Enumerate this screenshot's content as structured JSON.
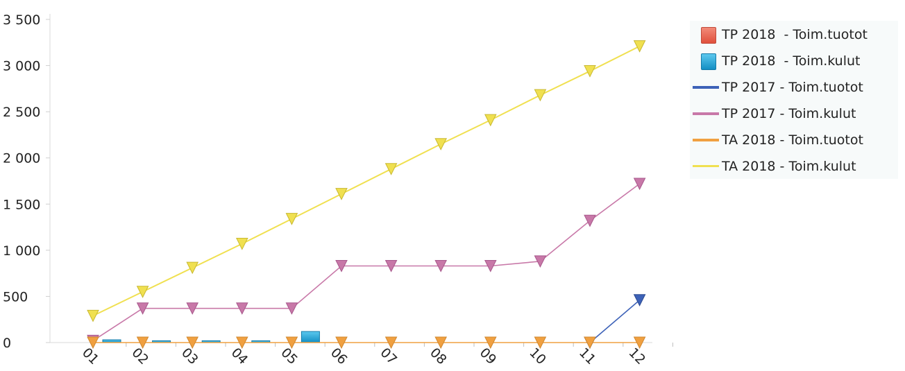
{
  "chart_data": {
    "type": "line",
    "categories": [
      "01",
      "02",
      "03",
      "04",
      "05",
      "06",
      "07",
      "08",
      "09",
      "10",
      "11",
      "12"
    ],
    "y_ticks": [
      "0",
      "500",
      "1 000",
      "1 500",
      "2 000",
      "2 500",
      "3 000",
      "3 500"
    ],
    "ylim": [
      0,
      3500
    ],
    "grid": false,
    "legend_position": "right",
    "series": [
      {
        "name": "TP 2018  - Toim.tuotot",
        "kind": "bar",
        "color": "#e8604c",
        "values": [
          0,
          0,
          0,
          0,
          0,
          null,
          null,
          null,
          null,
          null,
          null,
          null
        ]
      },
      {
        "name": "TP 2018  - Toim.kulut",
        "kind": "bar",
        "color": "#1ea6d8",
        "values": [
          30,
          20,
          20,
          20,
          120,
          null,
          null,
          null,
          null,
          null,
          null,
          null
        ]
      },
      {
        "name": "TP 2017 - Toim.tuotot",
        "kind": "line",
        "color": "#3d62b8",
        "values": [
          null,
          null,
          null,
          null,
          null,
          null,
          null,
          null,
          null,
          null,
          0,
          460
        ]
      },
      {
        "name": "TP 2017 - Toim.kulut",
        "kind": "line",
        "color": "#c878a8",
        "values": [
          20,
          370,
          370,
          370,
          370,
          830,
          830,
          830,
          830,
          880,
          1320,
          1720
        ]
      },
      {
        "name": "TA 2018 - Toim.tuotot",
        "kind": "line",
        "color": "#f0a040",
        "values": [
          0,
          0,
          0,
          0,
          0,
          0,
          0,
          0,
          0,
          0,
          0,
          0
        ]
      },
      {
        "name": "TA 2018 - Toim.kulut",
        "kind": "line",
        "color": "#f0e050",
        "values": [
          290,
          550,
          810,
          1070,
          1340,
          1610,
          1880,
          2150,
          2410,
          2680,
          2940,
          3210
        ]
      }
    ]
  }
}
